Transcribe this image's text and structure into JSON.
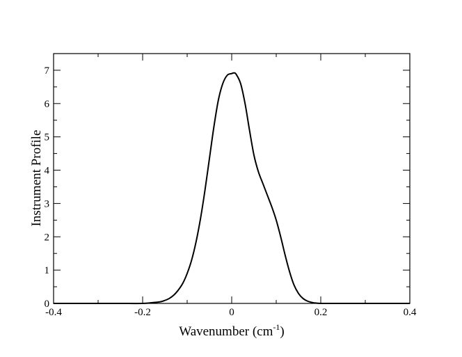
{
  "chart_data": {
    "type": "line",
    "title": "",
    "xlabel_main": "Wavenumber (cm",
    "xlabel_sup": "-1",
    "xlabel_close": ")",
    "ylabel": "Instrument Profile",
    "xlim": [
      -0.4,
      0.4
    ],
    "ylim": [
      0,
      7.5
    ],
    "x_ticks": [
      -0.4,
      -0.2,
      0,
      0.2,
      0.4
    ],
    "x_tick_labels": [
      "-0.4",
      "-0.2",
      "0",
      "0.2",
      "0.4"
    ],
    "y_ticks": [
      0,
      1,
      2,
      3,
      4,
      5,
      6,
      7
    ],
    "y_tick_labels": [
      "0",
      "1",
      "2",
      "3",
      "4",
      "5",
      "6",
      "7"
    ],
    "grid": false,
    "line_color": "#000000",
    "series": [
      {
        "x": [
          -0.4,
          -0.3,
          -0.25,
          -0.2,
          -0.18,
          -0.16,
          -0.15,
          -0.14,
          -0.13,
          -0.12,
          -0.11,
          -0.1,
          -0.09,
          -0.08,
          -0.07,
          -0.06,
          -0.05,
          -0.04,
          -0.03,
          -0.02,
          -0.01,
          0.0,
          0.005,
          0.01,
          0.02,
          0.03,
          0.04,
          0.05,
          0.06,
          0.07,
          0.08,
          0.09,
          0.1,
          0.11,
          0.12,
          0.13,
          0.14,
          0.15,
          0.16,
          0.17,
          0.18,
          0.19,
          0.2,
          0.22,
          0.25,
          0.3,
          0.4
        ],
        "y": [
          0,
          0,
          0,
          0.0,
          0.02,
          0.05,
          0.09,
          0.15,
          0.25,
          0.4,
          0.6,
          0.9,
          1.3,
          1.85,
          2.55,
          3.4,
          4.35,
          5.3,
          6.1,
          6.6,
          6.85,
          6.9,
          6.92,
          6.88,
          6.6,
          6.0,
          5.2,
          4.45,
          3.95,
          3.6,
          3.25,
          2.9,
          2.5,
          2.0,
          1.45,
          0.95,
          0.55,
          0.3,
          0.15,
          0.07,
          0.03,
          0.01,
          0.0,
          0,
          0,
          0,
          0
        ]
      }
    ]
  }
}
